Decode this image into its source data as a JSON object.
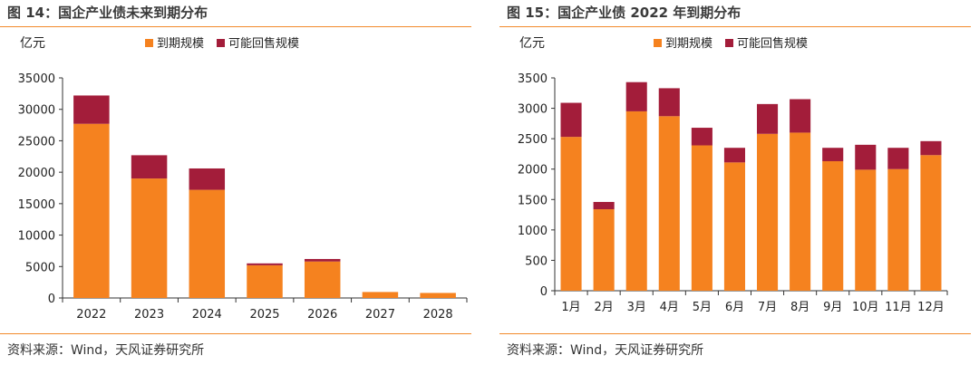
{
  "figures": [
    {
      "title": "图 14：国企产业债未来到期分布",
      "source": "资料来源：Wind，天风证券研究所",
      "chart_data": {
        "type": "bar",
        "stacked": true,
        "unit_label": "亿元",
        "categories": [
          "2022",
          "2023",
          "2024",
          "2025",
          "2026",
          "2027",
          "2028"
        ],
        "series": [
          {
            "name": "到期规模",
            "color": "#f5821f",
            "values": [
              27700,
              19000,
              17200,
              5200,
              5800,
              950,
              800
            ]
          },
          {
            "name": "可能回售规模",
            "color": "#a31d3a",
            "values": [
              4500,
              3700,
              3400,
              300,
              400,
              0,
              0
            ]
          }
        ],
        "ylim": [
          0,
          35000
        ],
        "yticks": [
          0,
          5000,
          10000,
          15000,
          20000,
          25000,
          30000,
          35000
        ],
        "legend_position": "top"
      }
    },
    {
      "title": "图 15：国企产业债 2022 年到期分布",
      "source": "资料来源：Wind，天风证券研究所",
      "chart_data": {
        "type": "bar",
        "stacked": true,
        "unit_label": "亿元",
        "categories": [
          "1月",
          "2月",
          "3月",
          "4月",
          "5月",
          "6月",
          "7月",
          "8月",
          "9月",
          "10月",
          "11月",
          "12月"
        ],
        "series": [
          {
            "name": "到期规模",
            "color": "#f5821f",
            "values": [
              2530,
              1340,
              2950,
              2870,
              2390,
              2110,
              2580,
              2600,
              2130,
              1990,
              2000,
              2230
            ]
          },
          {
            "name": "可能回售规模",
            "color": "#a31d3a",
            "values": [
              560,
              120,
              480,
              460,
              290,
              240,
              490,
              550,
              220,
              410,
              350,
              230
            ]
          }
        ],
        "ylim": [
          0,
          3500
        ],
        "yticks": [
          0,
          500,
          1000,
          1500,
          2000,
          2500,
          3000,
          3500
        ],
        "legend_position": "top"
      }
    }
  ]
}
